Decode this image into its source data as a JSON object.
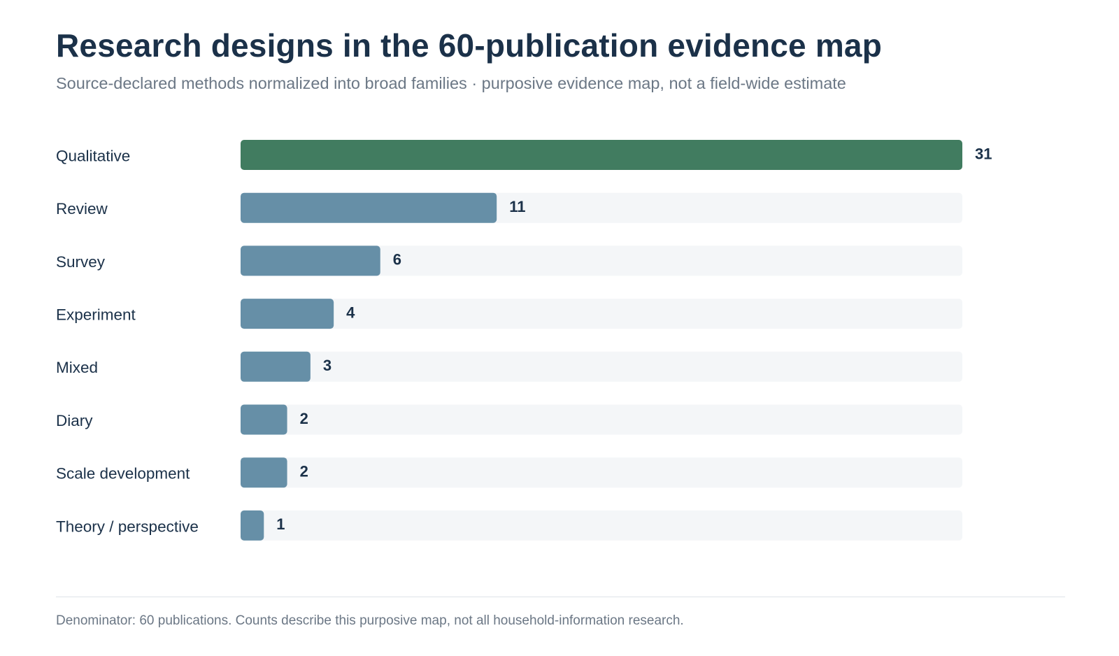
{
  "title": "Research designs in the 60-publication evidence map",
  "subtitle": "Source-declared methods normalized into broad families · purposive evidence map, not a field-wide estimate",
  "footnote": "Denominator: 60 publications. Counts describe this purposive map, not all household-information research.",
  "colors": {
    "highlight": "#417c60",
    "bar": "#668fa7",
    "track": "#f4f6f8",
    "text": "#1b3149",
    "muted": "#6b7785"
  },
  "chart_data": {
    "type": "bar",
    "orientation": "horizontal",
    "title": "Research designs in the 60-publication evidence map",
    "subtitle": "Source-declared methods normalized into broad families · purposive evidence map, not a field-wide estimate",
    "categories": [
      "Qualitative",
      "Review",
      "Survey",
      "Experiment",
      "Mixed",
      "Diary",
      "Scale development",
      "Theory / perspective"
    ],
    "values": [
      31,
      11,
      6,
      4,
      3,
      2,
      2,
      1
    ],
    "highlight_index": 0,
    "xlim": [
      0,
      31
    ],
    "grid": false,
    "legend": "none"
  }
}
